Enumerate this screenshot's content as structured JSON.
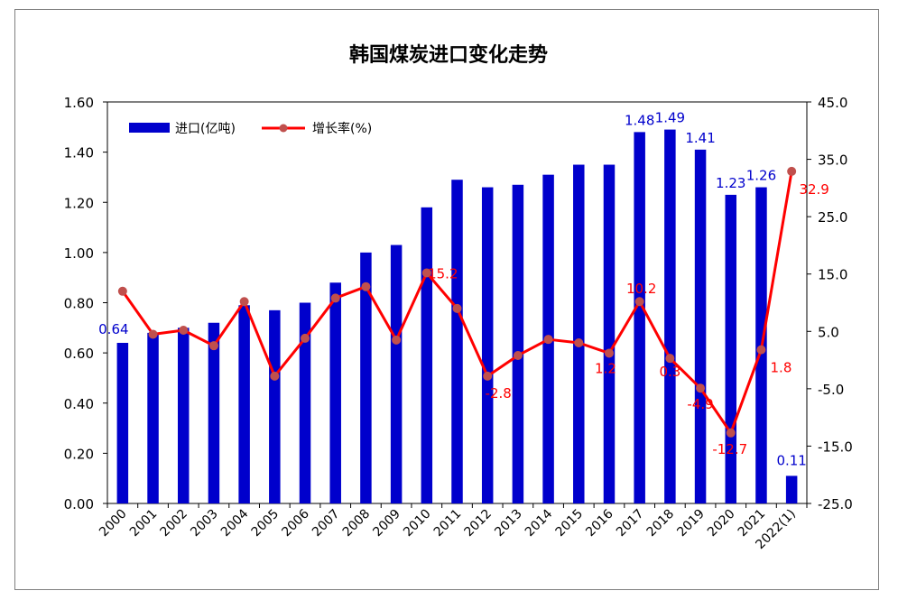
{
  "chart_data": {
    "type": "bar+line",
    "title": "韩国煤炭进口变化走势",
    "categories": [
      "2000",
      "2001",
      "2002",
      "2003",
      "2004",
      "2005",
      "2006",
      "2007",
      "2008",
      "2009",
      "2010",
      "2011",
      "2012",
      "2013",
      "2014",
      "2015",
      "2016",
      "2017",
      "2018",
      "2019",
      "2020",
      "2021",
      "2022(1)"
    ],
    "left_axis": {
      "ylim": [
        0,
        1.6
      ],
      "ticks": [
        "0.00",
        "0.20",
        "0.40",
        "0.60",
        "0.80",
        "1.00",
        "1.20",
        "1.40",
        "1.60"
      ]
    },
    "right_axis": {
      "ylim": [
        -25,
        45
      ],
      "ticks": [
        "-25.0",
        "-15.0",
        "-5.0",
        "5.0",
        "15.0",
        "25.0",
        "35.0",
        "45.0"
      ]
    },
    "series": [
      {
        "name": "进口(亿吨)",
        "type": "bar",
        "axis": "left",
        "color": "#0000CC",
        "values": [
          0.64,
          0.68,
          0.7,
          0.72,
          0.79,
          0.77,
          0.8,
          0.88,
          1.0,
          1.03,
          1.18,
          1.29,
          1.26,
          1.27,
          1.31,
          1.35,
          1.35,
          1.48,
          1.49,
          1.41,
          1.23,
          1.26,
          0.11
        ],
        "data_labels": {
          "0": "0.64",
          "17": "1.48",
          "18": "1.49",
          "19": "1.41",
          "20": "1.23",
          "21": "1.26",
          "22": "0.11"
        }
      },
      {
        "name": "增长率(%)",
        "type": "line",
        "axis": "right",
        "color": "#FF0000",
        "marker_color": "#C0504D",
        "values": [
          12.0,
          4.5,
          5.2,
          2.5,
          10.2,
          -2.8,
          3.8,
          10.8,
          12.8,
          3.5,
          15.2,
          9.0,
          -2.8,
          0.8,
          3.6,
          3.0,
          1.2,
          10.2,
          0.3,
          -4.9,
          -12.7,
          1.8,
          32.9
        ],
        "data_labels": {
          "10": "15.2",
          "12": "-2.8",
          "16": "1.2",
          "17": "10.2",
          "18": "0.3",
          "19": "-4.9",
          "20": "-12.7",
          "21": "1.8",
          "22": "32.9"
        }
      }
    ],
    "legend": "top-left",
    "grid": false
  }
}
